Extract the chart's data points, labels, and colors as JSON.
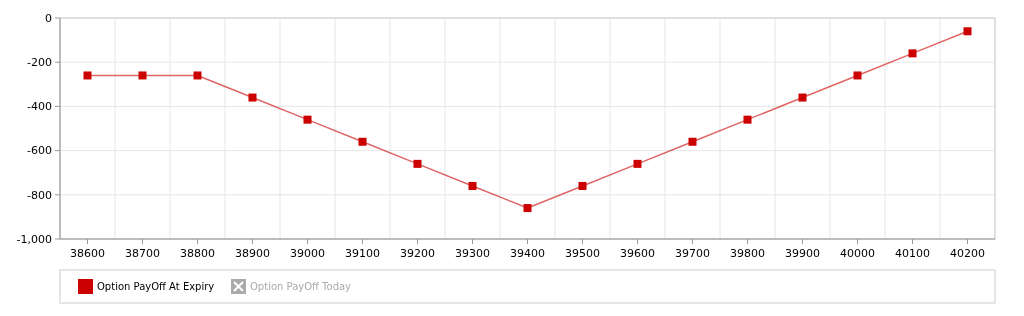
{
  "chart_data": {
    "type": "line",
    "categories": [
      "38600",
      "38700",
      "38800",
      "38900",
      "39000",
      "39100",
      "39200",
      "39300",
      "39400",
      "39500",
      "39600",
      "39700",
      "39800",
      "39900",
      "40000",
      "40100",
      "40200"
    ],
    "series": [
      {
        "name": "Option PayOff At Expiry",
        "color": "#cc0000",
        "values": [
          -260,
          -260,
          -260,
          -360,
          -460,
          -560,
          -660,
          -760,
          -860,
          -760,
          -660,
          -560,
          -460,
          -360,
          -260,
          -160,
          -60
        ]
      },
      {
        "name": "Option PayOff Today",
        "color": "#aaaaaa",
        "values": [
          null,
          null,
          null,
          null,
          null,
          null,
          null,
          null,
          null,
          null,
          null,
          null,
          null,
          null,
          null,
          null,
          null
        ]
      }
    ],
    "ylim": [
      -1000,
      0
    ],
    "yticks": [
      {
        "value": -1000,
        "label": "-1,000"
      },
      -800,
      -600,
      -400,
      -200,
      0
    ],
    "grid": true,
    "legend": "bottom",
    "marker": "square",
    "line_style": "solid"
  }
}
